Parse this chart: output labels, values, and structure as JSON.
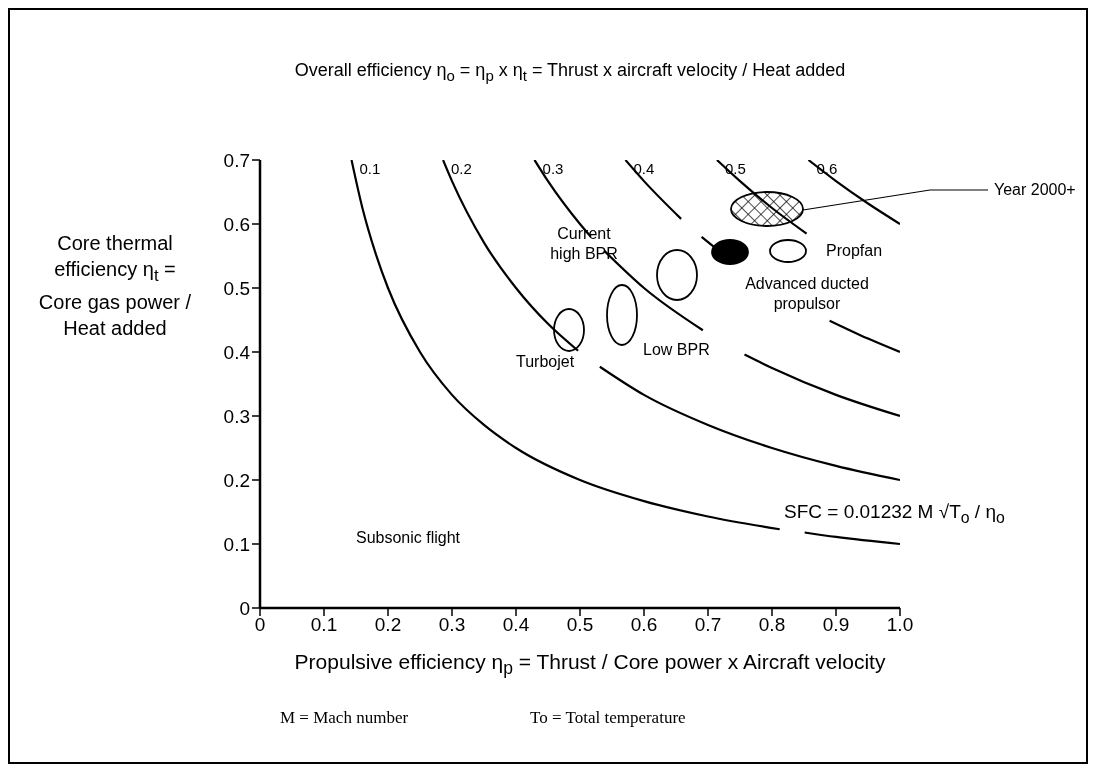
{
  "chart_data": {
    "type": "line",
    "title": "Overall efficiency η$_{o}$ = η$_{p}$ x η$_{t}$ = Thrust x aircraft velocity / Heat added",
    "xlabel": "Propulsive efficiency η$_{p}$ = Thrust / Core power x Aircraft velocity",
    "ylabel": "Core thermal efficiency η$_{t}$ = Core gas power / Heat added",
    "xlim": [
      0,
      1
    ],
    "xticks": [
      0,
      0.1,
      0.2,
      0.3,
      0.4,
      0.5,
      0.6,
      0.7,
      0.8,
      0.9,
      {
        "value": 1,
        "label": "1.0"
      }
    ],
    "ylim": [
      0,
      0.7
    ],
    "yticks": [
      0,
      0.1,
      0.2,
      0.3,
      0.4,
      0.5,
      0.6,
      0.7
    ],
    "legend": false,
    "marker": "none",
    "line_style": "solid",
    "series": [
      {
        "name": "0.1",
        "color": "#000000",
        "x": [
          0.143,
          0.16,
          0.18,
          0.2,
          0.25,
          0.3,
          0.35,
          0.4,
          0.5,
          0.6,
          0.7,
          0.812,
          0.83,
          0.851,
          0.9,
          1.0
        ],
        "values": [
          0.7,
          0.625,
          0.556,
          0.5,
          0.4,
          0.333,
          0.286,
          0.25,
          0.2,
          0.167,
          0.143,
          0.123,
          null,
          0.118,
          0.111,
          0.1
        ]
      },
      {
        "name": "0.2",
        "color": "#000000",
        "x": [
          0.286,
          0.3,
          0.35,
          0.4,
          0.45,
          0.497,
          0.515,
          0.531,
          0.6,
          0.7,
          0.8,
          0.9,
          1.0
        ],
        "values": [
          0.7,
          0.667,
          0.571,
          0.5,
          0.444,
          0.402,
          null,
          0.377,
          0.333,
          0.286,
          0.25,
          0.222,
          0.2
        ]
      },
      {
        "name": "0.3",
        "color": "#000000",
        "x": [
          0.429,
          0.45,
          0.5,
          0.517,
          0.527,
          0.538,
          0.6,
          0.692,
          0.725,
          0.757,
          0.8,
          0.9,
          1.0
        ],
        "values": [
          0.7,
          0.667,
          0.6,
          0.58,
          null,
          0.558,
          0.5,
          0.434,
          null,
          0.396,
          0.375,
          0.333,
          0.3
        ]
      },
      {
        "name": "0.4",
        "color": "#000000",
        "x": [
          0.571,
          0.6,
          0.658,
          0.674,
          0.69,
          0.72,
          0.74,
          0.8,
          0.89,
          0.95,
          1.0
        ],
        "values": [
          0.7,
          0.667,
          0.608,
          null,
          0.58,
          0.556,
          0.541,
          null,
          0.449,
          0.421,
          0.4
        ]
      },
      {
        "name": "0.5",
        "color": "#000000",
        "x": [
          0.714,
          0.75,
          0.8,
          0.854
        ],
        "values": [
          0.7,
          0.667,
          0.625,
          0.585
        ]
      },
      {
        "name": "0.6",
        "color": "#000000",
        "x": [
          0.857,
          0.9,
          0.95,
          1.0
        ],
        "values": [
          0.7,
          0.667,
          0.632,
          0.6
        ]
      }
    ],
    "annotations": [
      "Subsonic flight",
      "SFC = 0.01232 M √T$_{o}$ / η$_{o}$",
      "M = Mach number",
      "To = Total temperature",
      "Year 2000+",
      "Propfan",
      "Advanced ducted propulsor",
      "Current high BPR",
      "Low BPR",
      "Turbojet"
    ]
  }
}
